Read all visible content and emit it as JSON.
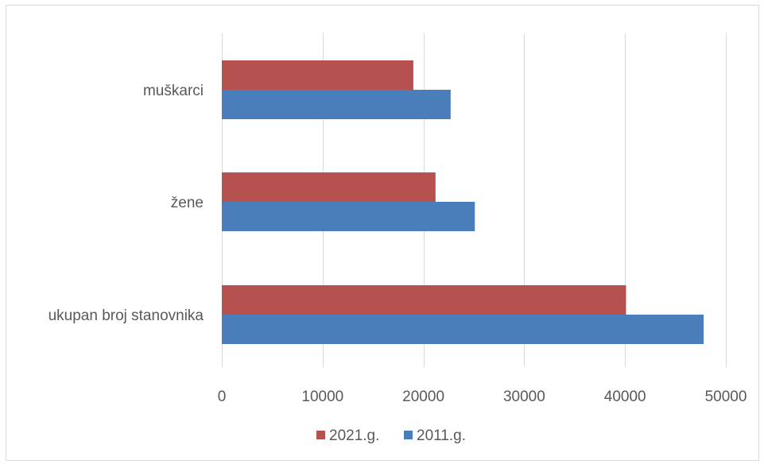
{
  "chart_data": {
    "type": "bar",
    "orientation": "horizontal",
    "categories": [
      "muškarci",
      "žene",
      "ukupan broj stanovnika"
    ],
    "series": [
      {
        "name": "2021.g.",
        "color": "#b5524f",
        "values": [
          19000,
          21200,
          40100
        ]
      },
      {
        "name": "2011.g.",
        "color": "#4a7ebb",
        "values": [
          22700,
          25100,
          47800
        ]
      }
    ],
    "xlim": [
      0,
      50000
    ],
    "xticks": [
      0,
      10000,
      20000,
      30000,
      40000,
      50000
    ],
    "tick_labels": [
      "0",
      "10000",
      "20000",
      "30000",
      "40000",
      "50000"
    ],
    "grid": true,
    "legend_position": "bottom",
    "colors": {
      "gridline": "#d9d9d9",
      "text": "#595959"
    }
  }
}
